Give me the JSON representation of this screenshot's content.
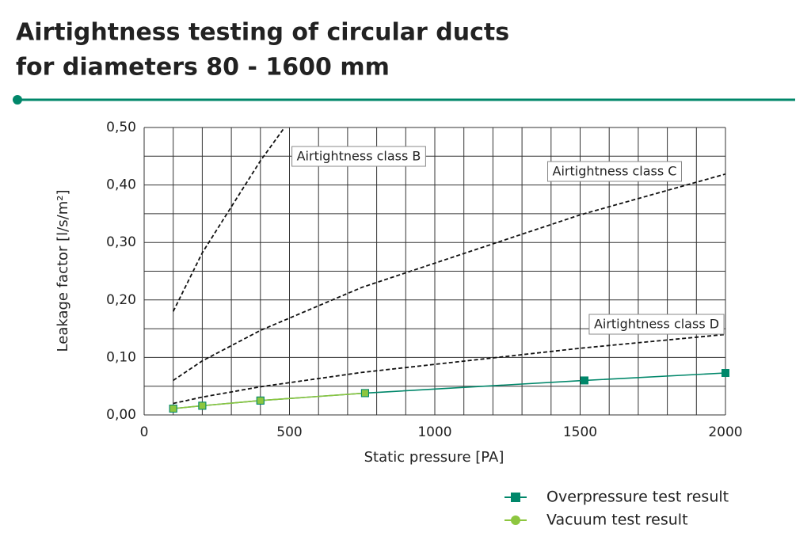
{
  "chart_data": {
    "type": "line",
    "title": [
      "Airtightness testing of circular ducts",
      "for diameters 80 - 1600 mm"
    ],
    "x_label": "Static pressure [PA]",
    "y_label": "Leakage factor [l/s/m²]",
    "xlim": [
      0,
      2000
    ],
    "ylim": [
      0,
      0.5
    ],
    "xticks": [
      0,
      500,
      1000,
      1500,
      2000
    ],
    "yticks": [
      {
        "value": 0,
        "label": "0,00"
      },
      {
        "value": 0.1,
        "label": "0,10"
      },
      {
        "value": 0.2,
        "label": "0,20"
      },
      {
        "value": 0.3,
        "label": "0,30"
      },
      {
        "value": 0.4,
        "label": "0,40"
      },
      {
        "value": 0.5,
        "label": "0,50"
      }
    ],
    "xgrid": [
      0,
      100,
      200,
      300,
      400,
      500,
      600,
      700,
      800,
      900,
      1000,
      1100,
      1200,
      1300,
      1400,
      1500,
      1600,
      1700,
      1800,
      1900,
      2000
    ],
    "ygrid": [
      0,
      0.05,
      0.1,
      0.15,
      0.2,
      0.25,
      0.3,
      0.35,
      0.4,
      0.45,
      0.5
    ],
    "grid": true,
    "series": [
      {
        "name": "Airtightness class B",
        "color": "#111111",
        "style": "dashed",
        "x": [
          100,
          200,
          400,
          480
        ],
        "values": [
          0.18,
          0.282,
          0.442,
          0.498
        ]
      },
      {
        "name": "Airtightness class C",
        "color": "#111111",
        "style": "dashed",
        "x": [
          100,
          200,
          400,
          750,
          1500,
          2000
        ],
        "values": [
          0.06,
          0.094,
          0.147,
          0.222,
          0.348,
          0.419
        ]
      },
      {
        "name": "Airtightness class D",
        "color": "#111111",
        "style": "dashed",
        "x": [
          100,
          200,
          400,
          750,
          1500,
          2000
        ],
        "values": [
          0.02,
          0.031,
          0.049,
          0.074,
          0.116,
          0.14
        ]
      },
      {
        "name": "Overpressure test result",
        "color": "#00876a",
        "style": "solid",
        "marker": "square",
        "x": [
          100,
          200,
          400,
          760,
          1515,
          2000
        ],
        "values": [
          0.011,
          0.016,
          0.025,
          0.038,
          0.06,
          0.073
        ]
      },
      {
        "name": "Vacuum test result",
        "color": "#8dc63f",
        "style": "solid",
        "marker": "circle",
        "x": [
          100,
          200,
          400,
          760
        ],
        "values": [
          0.011,
          0.016,
          0.025,
          0.038
        ]
      }
    ]
  }
}
